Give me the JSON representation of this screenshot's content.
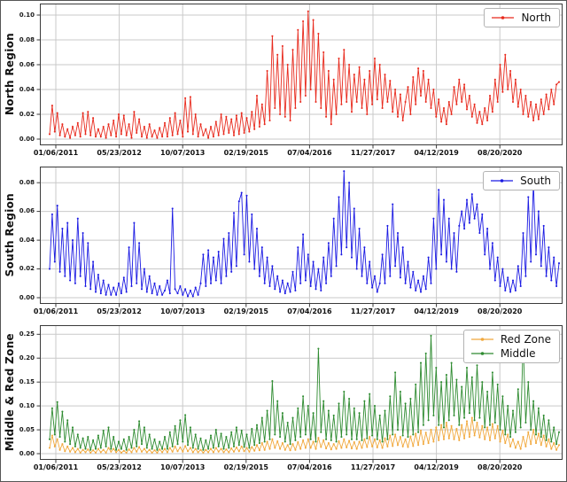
{
  "style": {
    "background": "#ffffff",
    "figure_border_color": "#555555",
    "grid_color": "#c9c9c9",
    "spine_color": "#3a3a3a",
    "tick_label_color": "#111111"
  },
  "chart_data": [
    {
      "type": "line",
      "title": "",
      "xlabel": "",
      "ylabel": "North Region",
      "grid": true,
      "legend_position": "upper right",
      "ylim": [
        0,
        0.105
      ],
      "x_tick_labels": [
        "01/06/2011",
        "05/23/2012",
        "10/07/2013",
        "02/19/2015",
        "07/04/2016",
        "11/27/2017",
        "04/12/2019",
        "08/20/2020"
      ],
      "x_tick_positions": [
        0.0305,
        0.1518,
        0.2732,
        0.3946,
        0.5159,
        0.6373,
        0.7586,
        0.88
      ],
      "y_tick_labels": [
        "0.00",
        "0.02",
        "0.04",
        "0.06",
        "0.08",
        "0.10"
      ],
      "y_tick_values": [
        0,
        0.02,
        0.04,
        0.06,
        0.08,
        0.1
      ],
      "series": [
        {
          "name": "North",
          "color": "#e8291c",
          "values": [
            0.004,
            0.027,
            0.006,
            0.021,
            0.003,
            0.012,
            0.002,
            0.008,
            0.001,
            0.01,
            0.003,
            0.013,
            0.002,
            0.021,
            0.004,
            0.022,
            0.003,
            0.017,
            0.002,
            0.008,
            0.002,
            0.01,
            0.001,
            0.012,
            0.003,
            0.015,
            0.002,
            0.02,
            0.004,
            0.019,
            0.003,
            0.012,
            0.001,
            0.022,
            0.005,
            0.016,
            0.002,
            0.01,
            0.001,
            0.012,
            0.002,
            0.007,
            0.001,
            0.009,
            0.002,
            0.013,
            0.002,
            0.017,
            0.003,
            0.021,
            0.004,
            0.015,
            0.002,
            0.033,
            0.006,
            0.034,
            0.004,
            0.02,
            0.002,
            0.012,
            0.003,
            0.008,
            0.001,
            0.01,
            0.002,
            0.014,
            0.003,
            0.02,
            0.004,
            0.018,
            0.005,
            0.016,
            0.003,
            0.019,
            0.004,
            0.021,
            0.005,
            0.017,
            0.006,
            0.022,
            0.008,
            0.035,
            0.01,
            0.028,
            0.012,
            0.055,
            0.015,
            0.083,
            0.025,
            0.068,
            0.02,
            0.075,
            0.018,
            0.06,
            0.015,
            0.072,
            0.025,
            0.088,
            0.03,
            0.095,
            0.035,
            0.103,
            0.04,
            0.096,
            0.03,
            0.085,
            0.025,
            0.07,
            0.018,
            0.055,
            0.012,
            0.048,
            0.02,
            0.065,
            0.028,
            0.072,
            0.03,
            0.06,
            0.022,
            0.052,
            0.03,
            0.058,
            0.025,
            0.048,
            0.02,
            0.055,
            0.028,
            0.065,
            0.032,
            0.06,
            0.025,
            0.052,
            0.03,
            0.047,
            0.022,
            0.04,
            0.018,
            0.036,
            0.015,
            0.03,
            0.042,
            0.02,
            0.05,
            0.028,
            0.057,
            0.035,
            0.055,
            0.03,
            0.048,
            0.025,
            0.04,
            0.018,
            0.032,
            0.014,
            0.025,
            0.012,
            0.03,
            0.02,
            0.042,
            0.028,
            0.048,
            0.03,
            0.044,
            0.024,
            0.035,
            0.018,
            0.028,
            0.013,
            0.022,
            0.012,
            0.025,
            0.015,
            0.035,
            0.022,
            0.048,
            0.03,
            0.06,
            0.038,
            0.068,
            0.04,
            0.055,
            0.03,
            0.048,
            0.026,
            0.04,
            0.02,
            0.035,
            0.018,
            0.03,
            0.015,
            0.028,
            0.016,
            0.032,
            0.02,
            0.036,
            0.024,
            0.04,
            0.028,
            0.044,
            0.046
          ]
        }
      ]
    },
    {
      "type": "line",
      "title": "",
      "xlabel": "",
      "ylabel": "South Region",
      "grid": true,
      "legend_position": "upper right",
      "ylim": [
        0,
        0.0875
      ],
      "x_tick_labels": [
        "01/06/2011",
        "05/23/2012",
        "10/07/2013",
        "02/19/2015",
        "07/04/2016",
        "11/27/2017",
        "04/12/2019",
        "08/20/2020"
      ],
      "x_tick_positions": [
        0.0305,
        0.1518,
        0.2732,
        0.3946,
        0.5159,
        0.6373,
        0.7586,
        0.88
      ],
      "y_tick_labels": [
        "0.00",
        "0.02",
        "0.04",
        "0.06",
        "0.08"
      ],
      "y_tick_values": [
        0,
        0.02,
        0.04,
        0.06,
        0.08
      ],
      "series": [
        {
          "name": "South",
          "color": "#1b1ae3",
          "values": [
            0.02,
            0.058,
            0.025,
            0.064,
            0.018,
            0.048,
            0.015,
            0.052,
            0.012,
            0.04,
            0.01,
            0.055,
            0.015,
            0.045,
            0.008,
            0.038,
            0.006,
            0.025,
            0.004,
            0.016,
            0.003,
            0.012,
            0.002,
            0.009,
            0.002,
            0.007,
            0.002,
            0.01,
            0.003,
            0.014,
            0.004,
            0.035,
            0.008,
            0.052,
            0.01,
            0.038,
            0.006,
            0.02,
            0.004,
            0.015,
            0.003,
            0.01,
            0.002,
            0.008,
            0.002,
            0.005,
            0.012,
            0.003,
            0.062,
            0.006,
            0.003,
            0.008,
            0.002,
            0.006,
            0.001,
            0.005,
            0.001,
            0.007,
            0.002,
            0.01,
            0.03,
            0.008,
            0.033,
            0.01,
            0.028,
            0.012,
            0.032,
            0.01,
            0.041,
            0.015,
            0.045,
            0.018,
            0.059,
            0.022,
            0.067,
            0.073,
            0.03,
            0.071,
            0.025,
            0.058,
            0.02,
            0.048,
            0.015,
            0.035,
            0.01,
            0.028,
            0.008,
            0.022,
            0.006,
            0.015,
            0.004,
            0.012,
            0.003,
            0.01,
            0.004,
            0.018,
            0.005,
            0.035,
            0.01,
            0.044,
            0.012,
            0.03,
            0.008,
            0.025,
            0.006,
            0.02,
            0.005,
            0.028,
            0.01,
            0.038,
            0.015,
            0.055,
            0.022,
            0.07,
            0.03,
            0.088,
            0.035,
            0.08,
            0.028,
            0.062,
            0.02,
            0.048,
            0.015,
            0.035,
            0.01,
            0.025,
            0.007,
            0.015,
            0.004,
            0.01,
            0.03,
            0.01,
            0.05,
            0.015,
            0.065,
            0.022,
            0.045,
            0.014,
            0.035,
            0.01,
            0.025,
            0.007,
            0.018,
            0.005,
            0.012,
            0.004,
            0.015,
            0.006,
            0.028,
            0.01,
            0.055,
            0.02,
            0.075,
            0.03,
            0.068,
            0.025,
            0.055,
            0.02,
            0.045,
            0.018,
            0.05,
            0.06,
            0.048,
            0.068,
            0.052,
            0.072,
            0.055,
            0.065,
            0.045,
            0.058,
            0.03,
            0.048,
            0.02,
            0.038,
            0.012,
            0.028,
            0.008,
            0.02,
            0.005,
            0.014,
            0.004,
            0.012,
            0.005,
            0.022,
            0.008,
            0.045,
            0.015,
            0.07,
            0.025,
            0.08,
            0.03,
            0.06,
            0.022,
            0.05,
            0.015,
            0.035,
            0.012,
            0.028,
            0.008,
            0.024
          ]
        }
      ]
    },
    {
      "type": "line",
      "title": "",
      "xlabel": "",
      "ylabel": "Middle & Red Zone",
      "grid": true,
      "legend_position": "upper right",
      "ylim": [
        0,
        0.258
      ],
      "x_tick_labels": [
        "01/06/2011",
        "05/23/2012",
        "10/07/2013",
        "02/19/2015",
        "07/04/2016",
        "11/27/2017",
        "04/12/2019",
        "08/20/2020"
      ],
      "x_tick_positions": [
        0.0305,
        0.1518,
        0.2732,
        0.3946,
        0.5159,
        0.6373,
        0.7586,
        0.88
      ],
      "y_tick_labels": [
        "0.00",
        "0.05",
        "0.10",
        "0.15",
        "0.20",
        "0.25"
      ],
      "y_tick_values": [
        0,
        0.05,
        0.1,
        0.15,
        0.2,
        0.25
      ],
      "series": [
        {
          "name": "Red Zone",
          "color": "#f1a83c",
          "values": [
            0.012,
            0.038,
            0.015,
            0.03,
            0.008,
            0.02,
            0.005,
            0.015,
            0.004,
            0.012,
            0.003,
            0.01,
            0.002,
            0.008,
            0.003,
            0.009,
            0.002,
            0.007,
            0.002,
            0.01,
            0.003,
            0.008,
            0.002,
            0.012,
            0.004,
            0.01,
            0.003,
            0.008,
            0.002,
            0.006,
            0.002,
            0.009,
            0.003,
            0.012,
            0.004,
            0.014,
            0.004,
            0.01,
            0.003,
            0.008,
            0.002,
            0.007,
            0.002,
            0.009,
            0.003,
            0.01,
            0.003,
            0.012,
            0.004,
            0.015,
            0.005,
            0.013,
            0.004,
            0.016,
            0.005,
            0.012,
            0.003,
            0.01,
            0.003,
            0.008,
            0.002,
            0.008,
            0.003,
            0.01,
            0.003,
            0.012,
            0.004,
            0.01,
            0.003,
            0.009,
            0.003,
            0.011,
            0.004,
            0.013,
            0.005,
            0.015,
            0.005,
            0.012,
            0.004,
            0.014,
            0.006,
            0.018,
            0.007,
            0.022,
            0.008,
            0.025,
            0.01,
            0.03,
            0.012,
            0.026,
            0.01,
            0.022,
            0.008,
            0.018,
            0.007,
            0.02,
            0.008,
            0.024,
            0.01,
            0.028,
            0.012,
            0.03,
            0.012,
            0.025,
            0.01,
            0.033,
            0.014,
            0.028,
            0.011,
            0.022,
            0.009,
            0.02,
            0.01,
            0.026,
            0.012,
            0.03,
            0.013,
            0.027,
            0.011,
            0.024,
            0.01,
            0.025,
            0.012,
            0.03,
            0.014,
            0.035,
            0.015,
            0.03,
            0.013,
            0.028,
            0.012,
            0.032,
            0.015,
            0.038,
            0.016,
            0.04,
            0.018,
            0.035,
            0.015,
            0.03,
            0.014,
            0.036,
            0.016,
            0.042,
            0.018,
            0.048,
            0.02,
            0.044,
            0.022,
            0.05,
            0.025,
            0.055,
            0.028,
            0.06,
            0.03,
            0.065,
            0.032,
            0.058,
            0.03,
            0.052,
            0.028,
            0.06,
            0.032,
            0.068,
            0.035,
            0.075,
            0.038,
            0.065,
            0.034,
            0.058,
            0.03,
            0.055,
            0.028,
            0.062,
            0.032,
            0.058,
            0.025,
            0.048,
            0.022,
            0.04,
            0.015,
            0.03,
            0.012,
            0.025,
            0.01,
            0.035,
            0.015,
            0.045,
            0.02,
            0.05,
            0.022,
            0.042,
            0.018,
            0.038,
            0.015,
            0.03,
            0.01,
            0.022,
            0.008,
            0.018
          ]
        },
        {
          "name": "Middle",
          "color": "#2e8b30",
          "values": [
            0.03,
            0.095,
            0.04,
            0.108,
            0.035,
            0.088,
            0.025,
            0.07,
            0.02,
            0.055,
            0.015,
            0.04,
            0.012,
            0.032,
            0.01,
            0.035,
            0.008,
            0.028,
            0.01,
            0.038,
            0.012,
            0.048,
            0.015,
            0.055,
            0.01,
            0.035,
            0.008,
            0.025,
            0.01,
            0.03,
            0.008,
            0.035,
            0.012,
            0.05,
            0.015,
            0.068,
            0.02,
            0.055,
            0.012,
            0.04,
            0.01,
            0.03,
            0.008,
            0.025,
            0.01,
            0.035,
            0.01,
            0.045,
            0.015,
            0.058,
            0.02,
            0.07,
            0.025,
            0.081,
            0.018,
            0.055,
            0.012,
            0.04,
            0.01,
            0.032,
            0.008,
            0.028,
            0.01,
            0.038,
            0.012,
            0.05,
            0.015,
            0.042,
            0.01,
            0.035,
            0.012,
            0.045,
            0.015,
            0.055,
            0.018,
            0.048,
            0.014,
            0.04,
            0.012,
            0.052,
            0.018,
            0.06,
            0.022,
            0.075,
            0.025,
            0.09,
            0.03,
            0.152,
            0.04,
            0.11,
            0.035,
            0.085,
            0.025,
            0.065,
            0.02,
            0.075,
            0.028,
            0.095,
            0.035,
            0.12,
            0.04,
            0.1,
            0.03,
            0.085,
            0.025,
            0.22,
            0.045,
            0.11,
            0.03,
            0.09,
            0.028,
            0.08,
            0.025,
            0.105,
            0.035,
            0.13,
            0.04,
            0.115,
            0.03,
            0.095,
            0.03,
            0.085,
            0.028,
            0.11,
            0.032,
            0.125,
            0.038,
            0.1,
            0.03,
            0.08,
            0.025,
            0.09,
            0.03,
            0.12,
            0.04,
            0.17,
            0.05,
            0.13,
            0.038,
            0.105,
            0.035,
            0.115,
            0.04,
            0.145,
            0.045,
            0.19,
            0.06,
            0.21,
            0.07,
            0.247,
            0.08,
            0.18,
            0.06,
            0.15,
            0.055,
            0.165,
            0.07,
            0.19,
            0.08,
            0.155,
            0.06,
            0.14,
            0.075,
            0.18,
            0.085,
            0.16,
            0.07,
            0.185,
            0.075,
            0.15,
            0.055,
            0.13,
            0.06,
            0.17,
            0.065,
            0.145,
            0.05,
            0.12,
            0.04,
            0.1,
            0.035,
            0.09,
            0.045,
            0.135,
            0.055,
            0.235,
            0.065,
            0.15,
            0.05,
            0.11,
            0.04,
            0.095,
            0.035,
            0.08,
            0.028,
            0.07,
            0.025,
            0.055,
            0.02,
            0.045
          ]
        }
      ]
    }
  ]
}
